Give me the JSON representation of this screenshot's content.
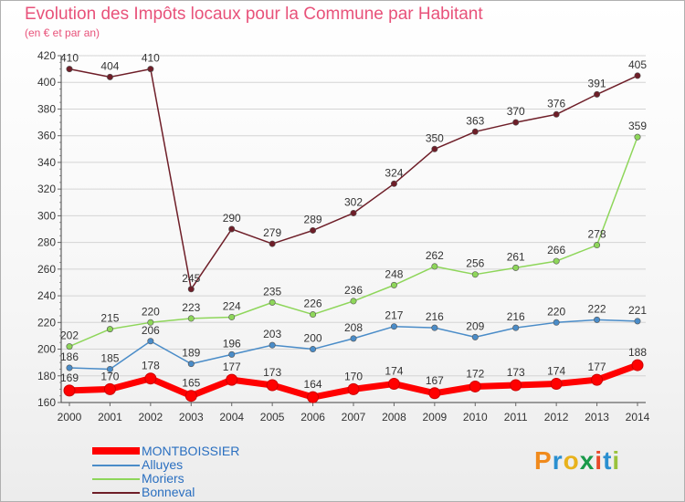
{
  "title": "Evolution des Impôts locaux pour la Commune par Habitant",
  "subtitle": "(en € et par an)",
  "logo": {
    "text": "Proxiti",
    "colors": [
      "#f08a1c",
      "#2a8fd0",
      "#e8b21c",
      "#1a9a4a",
      "#e84a2a",
      "#2a8fd0",
      "#9ac23c"
    ]
  },
  "chart_data": {
    "type": "line",
    "title": "Evolution des Impôts locaux pour la Commune par Habitant",
    "subtitle": "(en € et par an)",
    "xlabel": "",
    "ylabel": "",
    "x": [
      "2000",
      "2001",
      "2002",
      "2003",
      "2004",
      "2005",
      "2006",
      "2007",
      "2008",
      "2009",
      "2010",
      "2011",
      "2012",
      "2013",
      "2014"
    ],
    "ylim": [
      160,
      420
    ],
    "yticks": [
      160,
      180,
      200,
      220,
      240,
      260,
      280,
      300,
      320,
      340,
      360,
      380,
      400,
      420
    ],
    "series": [
      {
        "name": "MONTBOISSIER",
        "color": "#ff0000",
        "values": [
          169,
          170,
          178,
          165,
          177,
          173,
          164,
          170,
          174,
          167,
          172,
          173,
          174,
          177,
          188
        ]
      },
      {
        "name": "Alluyes",
        "color": "#4a8cc8",
        "values": [
          186,
          185,
          206,
          189,
          196,
          203,
          200,
          208,
          217,
          216,
          209,
          216,
          220,
          222,
          221
        ]
      },
      {
        "name": "Moriers",
        "color": "#8ed65a",
        "values": [
          202,
          215,
          220,
          223,
          224,
          235,
          226,
          236,
          248,
          262,
          256,
          261,
          266,
          278,
          359
        ]
      },
      {
        "name": "Bonneval",
        "color": "#6e1e28",
        "values": [
          410,
          404,
          410,
          245,
          290,
          279,
          289,
          302,
          324,
          350,
          363,
          370,
          376,
          391,
          405
        ]
      }
    ]
  }
}
